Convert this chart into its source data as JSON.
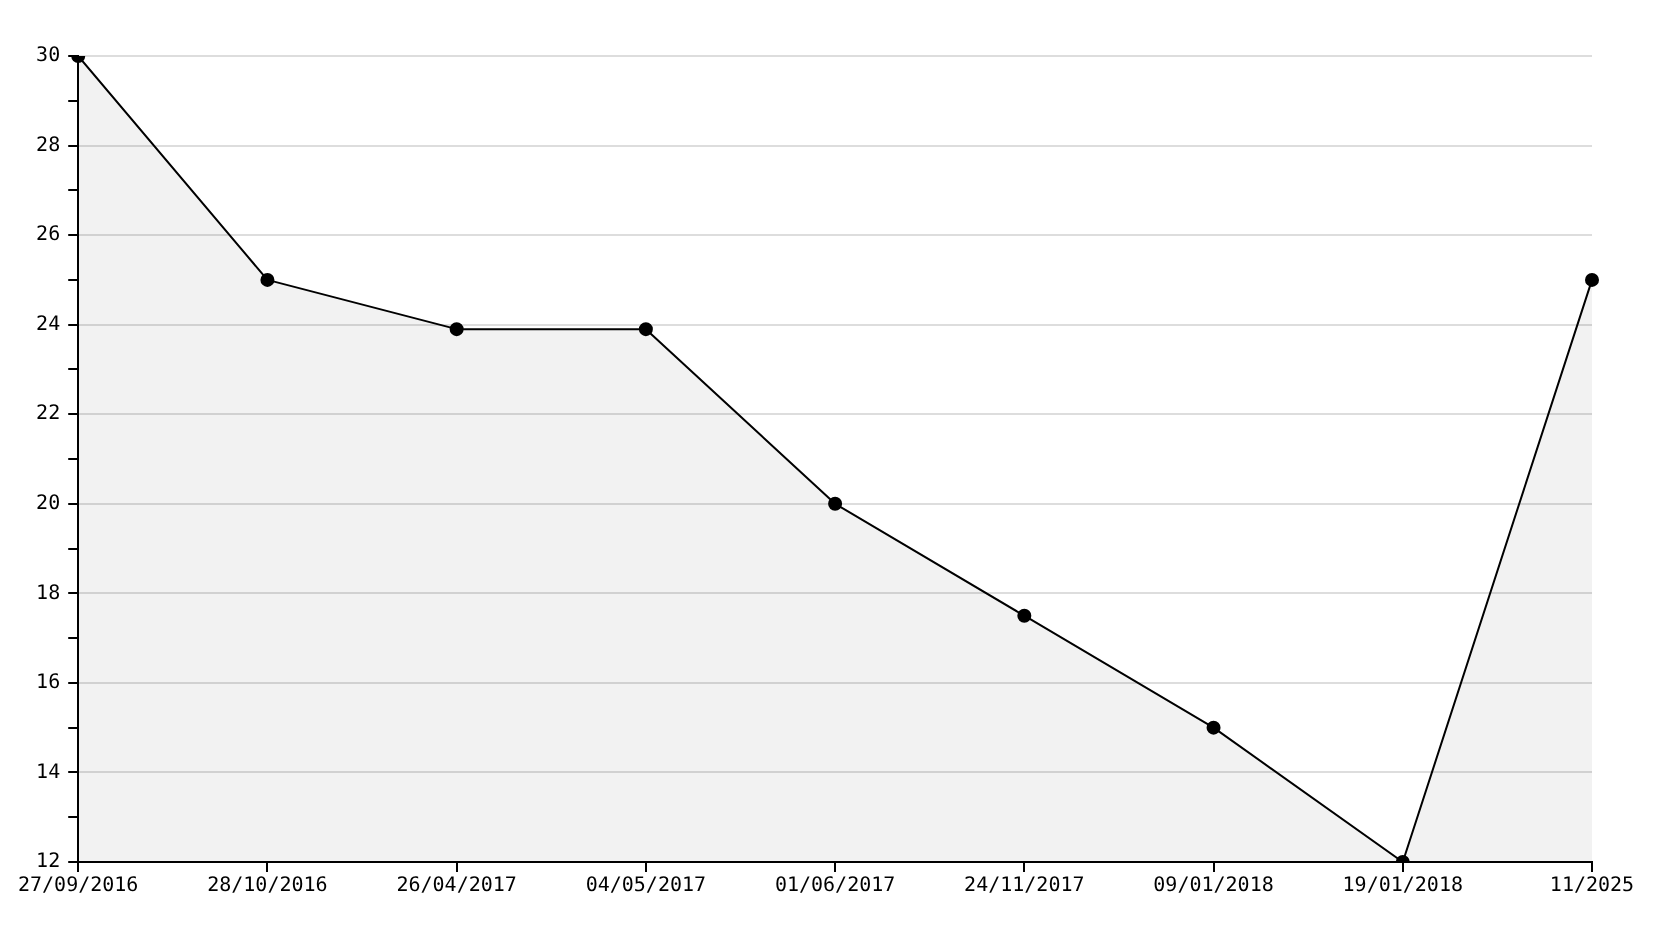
{
  "chart_data": {
    "type": "area",
    "categories": [
      "27/09/2016",
      "28/10/2016",
      "26/04/2017",
      "04/05/2017",
      "01/06/2017",
      "24/11/2017",
      "09/01/2018",
      "19/01/2018",
      "11/2025"
    ],
    "series": [
      {
        "color": "#000000",
        "values": [
          30,
          25,
          23.9,
          23.9,
          20,
          17.5,
          15,
          12,
          25
        ]
      }
    ],
    "ylim": [
      12,
      30
    ],
    "yticks": [
      12,
      {
        "value": 13,
        "label": null
      },
      14,
      {
        "value": 15,
        "label": null
      },
      16,
      {
        "value": 17,
        "label": null
      },
      18,
      {
        "value": 19,
        "label": null
      },
      20,
      {
        "value": 21,
        "label": null
      },
      22,
      {
        "value": 23,
        "label": null
      },
      24,
      {
        "value": 25,
        "label": null
      },
      26,
      {
        "value": 27,
        "label": null
      },
      28,
      {
        "value": 29,
        "label": null
      },
      30
    ],
    "grid": "y",
    "marker": "circle",
    "legend": false
  }
}
